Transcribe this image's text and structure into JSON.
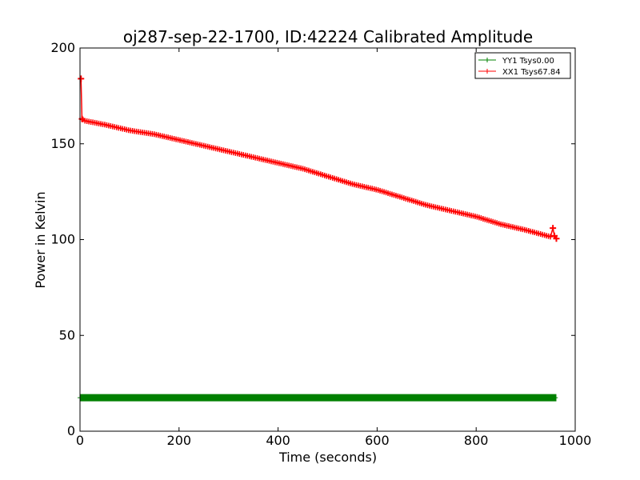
{
  "chart_data": {
    "type": "line",
    "title": "oj287-sep-22-1700, ID:42224 Calibrated Amplitude",
    "xlabel": "Time (seconds)",
    "ylabel": "Power in Kelvin",
    "xlim": [
      0,
      1000
    ],
    "ylim": [
      0,
      200
    ],
    "x_ticks": [
      0,
      200,
      400,
      600,
      800,
      1000
    ],
    "y_ticks": [
      0,
      50,
      100,
      150,
      200
    ],
    "x_tick_labels": [
      "0",
      "200",
      "400",
      "600",
      "800",
      "1000"
    ],
    "y_tick_labels": [
      "0",
      "50",
      "100",
      "150",
      "200"
    ],
    "grid": false,
    "legend_position": "top-right",
    "series": [
      {
        "name": "YY1 Tsys0.00",
        "color": "#008000",
        "marker": "+",
        "x": [
          0,
          100,
          200,
          300,
          400,
          500,
          600,
          700,
          800,
          900,
          962
        ],
        "y": [
          17.5,
          17.5,
          17.5,
          17.5,
          17.5,
          17.5,
          17.5,
          17.5,
          17.5,
          17.5,
          17.5
        ]
      },
      {
        "name": "XX1 Tsys67.84",
        "color": "#ff0000",
        "marker": "+",
        "x": [
          2,
          4,
          10,
          30,
          50,
          100,
          150,
          200,
          250,
          300,
          350,
          400,
          450,
          500,
          550,
          600,
          650,
          700,
          750,
          800,
          850,
          900,
          950,
          955,
          958,
          962
        ],
        "y": [
          184,
          163,
          162,
          161,
          160,
          157,
          155,
          152,
          149,
          146,
          143,
          140,
          137,
          133,
          129,
          126,
          122,
          118,
          115,
          112,
          108,
          105,
          101.5,
          106,
          102,
          100.5
        ]
      }
    ]
  }
}
